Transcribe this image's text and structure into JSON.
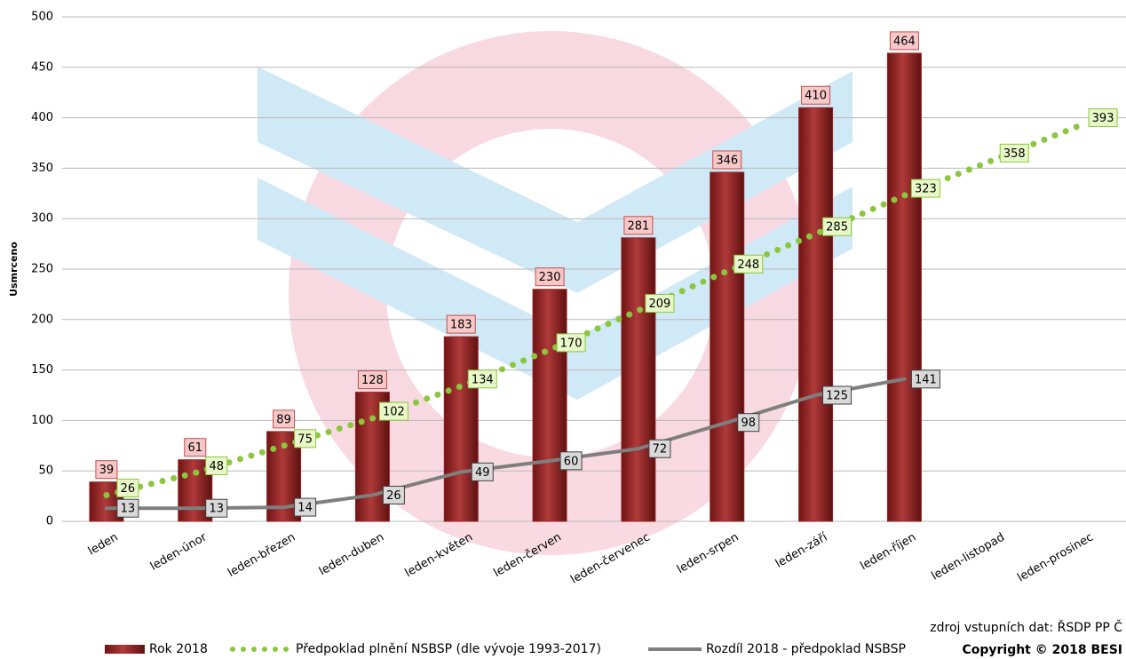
{
  "chart_data": {
    "type": "bar",
    "y_label": "Usmrceno",
    "categories": [
      "leden",
      "leden-únor",
      "leden-březen",
      "leden-duben",
      "leden-květen",
      "leden-červen",
      "leden-červenec",
      "leden-srpen",
      "leden-září",
      "leden-říjen",
      "leden-listopad",
      "leden-prosinec"
    ],
    "series": [
      {
        "name": "Rok 2018",
        "type": "bar",
        "color": "#9b2424",
        "values": [
          39,
          61,
          89,
          128,
          183,
          230,
          281,
          346,
          410,
          464,
          null,
          null
        ]
      },
      {
        "name": "Předpoklad plnění NSBSP (dle vývoje 1993-2017)",
        "type": "line",
        "style": "dotted",
        "color": "#8cc63f",
        "values": [
          26,
          48,
          75,
          102,
          134,
          170,
          209,
          248,
          285,
          323,
          358,
          393
        ]
      },
      {
        "name": "Rozdíl 2018 - předpoklad NSBSP",
        "type": "line",
        "style": "solid",
        "color": "#7f7f7f",
        "values": [
          13,
          13,
          14,
          26,
          49,
          60,
          72,
          98,
          125,
          141,
          null,
          null
        ]
      }
    ],
    "ylim": [
      0,
      500
    ],
    "yticks": [
      0,
      50,
      100,
      150,
      200,
      250,
      300,
      350,
      400,
      450,
      500
    ],
    "grid": true,
    "legend": "bottom",
    "source": "zdroj vstupních dat: ŘSDP PP Č",
    "copyright": "Copyright © 2018 BESI"
  }
}
